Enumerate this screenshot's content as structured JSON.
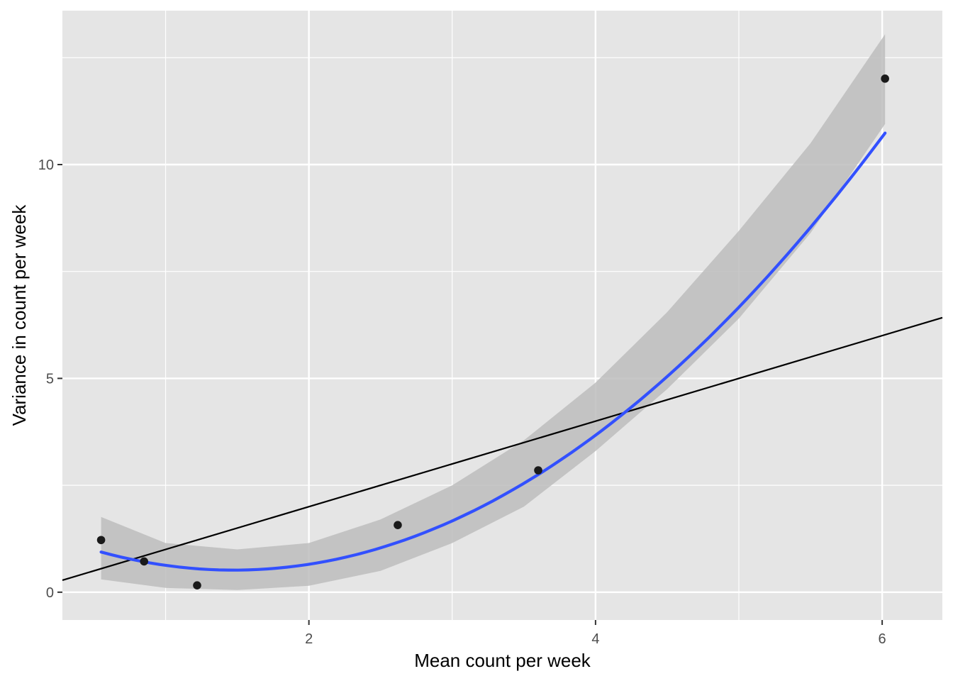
{
  "chart_data": {
    "type": "scatter",
    "title": "",
    "xlabel": "Mean count per week",
    "ylabel": "Variance in count per week",
    "xlim": [
      0.28,
      6.42
    ],
    "ylim": [
      -0.65,
      13.6
    ],
    "x_ticks": [
      2,
      4,
      6
    ],
    "x_tick_labels": [
      "2",
      "4",
      "6"
    ],
    "x_minor_ticks": [
      1,
      3,
      5
    ],
    "y_ticks": [
      0,
      5,
      10
    ],
    "y_tick_labels": [
      "0",
      "5",
      "10"
    ],
    "y_minor_ticks": [
      2.5,
      7.5,
      12.5
    ],
    "grid": true,
    "points": [
      {
        "x": 0.55,
        "y": 1.22
      },
      {
        "x": 0.85,
        "y": 0.72
      },
      {
        "x": 1.22,
        "y": 0.16
      },
      {
        "x": 2.62,
        "y": 1.57
      },
      {
        "x": 3.6,
        "y": 2.85
      },
      {
        "x": 6.02,
        "y": 12.01
      }
    ],
    "smooth": {
      "method": "quadratic fit",
      "color": "#3250ff",
      "coefficients": [
        1.5924,
        -1.4591,
        0.4947
      ],
      "x_range": [
        0.55,
        6.02
      ],
      "band_color": "#bdbdbd",
      "band": [
        {
          "x": 0.55,
          "lower": 0.3,
          "upper": 1.76
        },
        {
          "x": 1.0,
          "lower": 0.1,
          "upper": 1.15
        },
        {
          "x": 1.5,
          "lower": 0.05,
          "upper": 1.0
        },
        {
          "x": 2.0,
          "lower": 0.15,
          "upper": 1.15
        },
        {
          "x": 2.5,
          "lower": 0.5,
          "upper": 1.7
        },
        {
          "x": 3.0,
          "lower": 1.15,
          "upper": 2.5
        },
        {
          "x": 3.5,
          "lower": 2.0,
          "upper": 3.55
        },
        {
          "x": 4.0,
          "lower": 3.3,
          "upper": 4.9
        },
        {
          "x": 4.5,
          "lower": 4.75,
          "upper": 6.55
        },
        {
          "x": 5.0,
          "lower": 6.4,
          "upper": 8.45
        },
        {
          "x": 5.5,
          "lower": 8.4,
          "upper": 10.5
        },
        {
          "x": 6.02,
          "lower": 10.95,
          "upper": 13.05
        }
      ]
    },
    "reference_line": {
      "type": "identity",
      "slope": 1,
      "intercept": 0,
      "color": "#000000"
    },
    "colors": {
      "panel": "#e5e5e5",
      "grid": "#ffffff",
      "point": "#1a1a1a",
      "tick_text": "#4d4d4d"
    }
  }
}
